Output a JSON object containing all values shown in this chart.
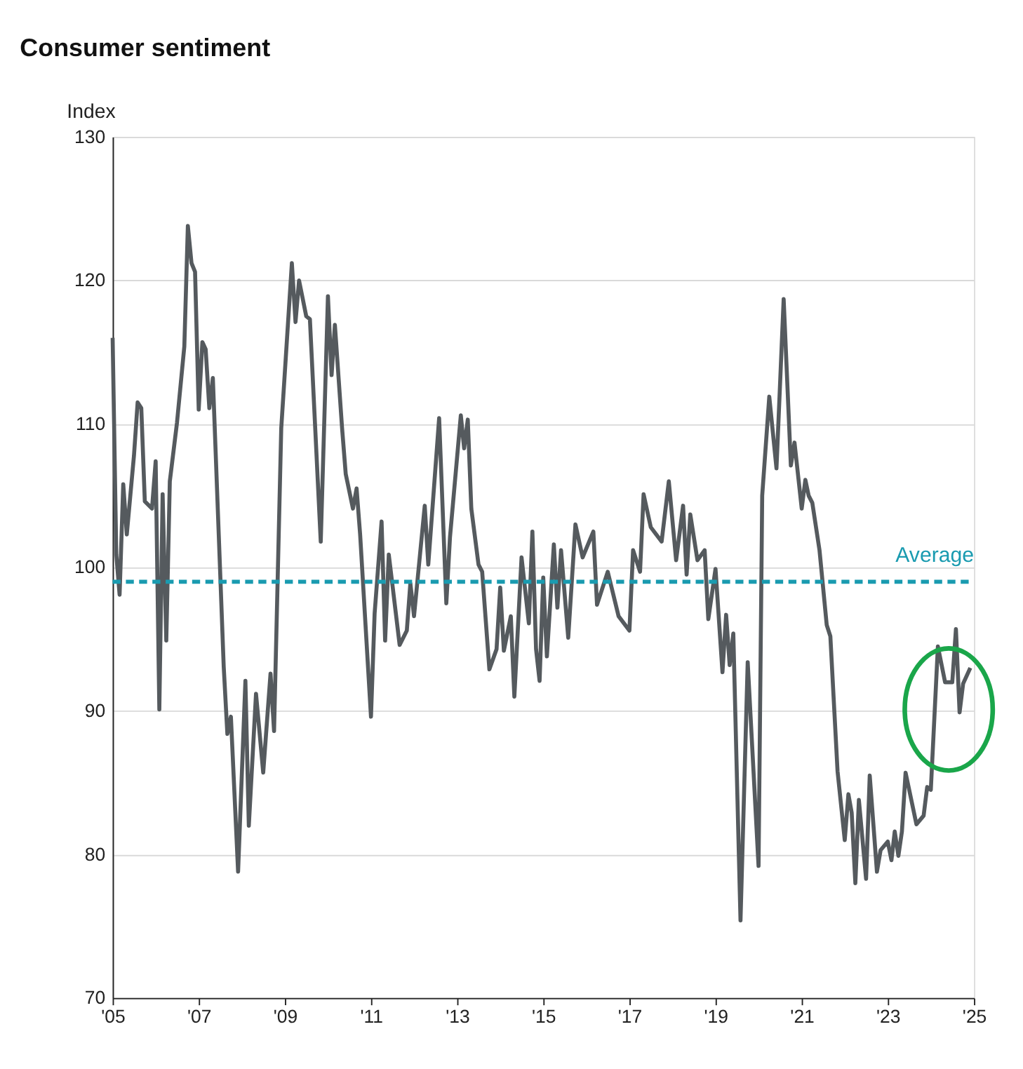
{
  "chart_data": {
    "type": "line",
    "title": "Consumer sentiment",
    "ylabel": "Index",
    "x": [
      "2005-01",
      "2005-02",
      "2005-03",
      "2005-04",
      "2005-05",
      "2005-07",
      "2005-08",
      "2005-09",
      "2005-10",
      "2005-12",
      "2006-01",
      "2006-02",
      "2006-03",
      "2006-04",
      "2006-05",
      "2006-07",
      "2006-09",
      "2006-10",
      "2006-11",
      "2006-12",
      "2007-01",
      "2007-02",
      "2007-03",
      "2007-04",
      "2007-05",
      "2007-08",
      "2007-09",
      "2007-10",
      "2007-12",
      "2008-02",
      "2008-03",
      "2008-05",
      "2008-07",
      "2008-09",
      "2008-10",
      "2008-12",
      "2009-03",
      "2009-04",
      "2009-05",
      "2009-07",
      "2009-08",
      "2009-11",
      "2010-01",
      "2010-02",
      "2010-03",
      "2010-05",
      "2010-06",
      "2010-08",
      "2010-09",
      "2010-10",
      "2011-01",
      "2011-02",
      "2011-04",
      "2011-05",
      "2011-06",
      "2011-09",
      "2011-11",
      "2011-12",
      "2012-01",
      "2012-04",
      "2012-05",
      "2012-08",
      "2012-10",
      "2012-11",
      "2013-02",
      "2013-03",
      "2013-04",
      "2013-05",
      "2013-07",
      "2013-08",
      "2013-10",
      "2013-12",
      "2014-01",
      "2014-02",
      "2014-04",
      "2014-05",
      "2014-07",
      "2014-09",
      "2014-10",
      "2014-11",
      "2014-12",
      "2015-01",
      "2015-02",
      "2015-04",
      "2015-05",
      "2015-06",
      "2015-08",
      "2015-10",
      "2015-12",
      "2016-03",
      "2016-04",
      "2016-07",
      "2016-10",
      "2017-01",
      "2017-02",
      "2017-04",
      "2017-05",
      "2017-07",
      "2017-10",
      "2017-12",
      "2018-02",
      "2018-04",
      "2018-05",
      "2018-06",
      "2018-08",
      "2018-10",
      "2018-11",
      "2019-01",
      "2019-03",
      "2019-04",
      "2019-05",
      "2019-06",
      "2019-08",
      "2019-10",
      "2020-01",
      "2020-02",
      "2020-04",
      "2020-06",
      "2020-08",
      "2020-10",
      "2020-11",
      "2021-01",
      "2021-02",
      "2021-03",
      "2021-04",
      "2021-06",
      "2021-08",
      "2021-09",
      "2021-11",
      "2022-01",
      "2022-02",
      "2022-03",
      "2022-04",
      "2022-05",
      "2022-07",
      "2022-08",
      "2022-10",
      "2022-11",
      "2023-01",
      "2023-02",
      "2023-03",
      "2023-04",
      "2023-05",
      "2023-06",
      "2023-09",
      "2023-11",
      "2023-12",
      "2024-01",
      "2024-03",
      "2024-05",
      "2024-07",
      "2024-08",
      "2024-09",
      "2024-10",
      "2024-12"
    ],
    "series": [
      {
        "color": "#555a5e",
        "values": [
          116.0,
          100.9,
          98.1,
          105.8,
          102.3,
          107.8,
          111.5,
          111.1,
          104.6,
          104.1,
          107.4,
          90.1,
          105.1,
          94.9,
          106.0,
          110.1,
          115.4,
          123.8,
          121.2,
          120.6,
          111.0,
          115.7,
          115.2,
          111.1,
          113.2,
          93.1,
          88.4,
          89.6,
          78.8,
          92.1,
          82.0,
          91.2,
          85.7,
          92.6,
          88.6,
          109.7,
          121.2,
          117.1,
          120.0,
          117.5,
          117.3,
          101.8,
          118.9,
          113.4,
          116.9,
          109.7,
          106.5,
          104.1,
          105.5,
          102.3,
          89.6,
          96.8,
          103.2,
          94.9,
          100.9,
          94.6,
          95.6,
          98.9,
          96.6,
          104.3,
          100.2,
          110.4,
          97.5,
          102.1,
          110.6,
          108.3,
          110.3,
          104.1,
          100.2,
          99.7,
          92.9,
          94.3,
          98.6,
          94.2,
          96.6,
          91.0,
          100.7,
          96.1,
          102.5,
          94.3,
          92.1,
          99.3,
          93.8,
          101.6,
          97.2,
          101.2,
          95.1,
          103.0,
          100.7,
          102.5,
          97.4,
          99.7,
          96.6,
          95.6,
          101.2,
          99.7,
          105.1,
          102.8,
          101.8,
          106.0,
          100.5,
          104.3,
          99.5,
          103.7,
          100.5,
          101.2,
          96.4,
          99.9,
          92.7,
          96.7,
          93.2,
          95.4,
          75.4,
          93.4,
          79.2,
          105.0,
          111.9,
          106.9,
          118.7,
          107.1,
          108.7,
          104.1,
          106.1,
          105.0,
          104.5,
          101.2,
          96.0,
          95.2,
          85.8,
          81.0,
          84.2,
          82.9,
          78.0,
          83.8,
          78.3,
          85.5,
          78.8,
          80.3,
          80.9,
          79.6,
          81.6,
          79.9,
          81.6,
          85.7,
          82.1,
          82.7,
          84.7,
          84.5,
          94.5,
          92.0,
          92.0,
          95.7,
          89.9,
          91.9,
          93.0
        ]
      }
    ],
    "xlim": [
      "2005-01",
      "2025-01"
    ],
    "xticks": [
      {
        "value": "2005-01",
        "label": "'05"
      },
      {
        "value": "2007-01",
        "label": "'07"
      },
      {
        "value": "2009-01",
        "label": "'09"
      },
      {
        "value": "2011-01",
        "label": "'11"
      },
      {
        "value": "2013-01",
        "label": "'13"
      },
      {
        "value": "2015-01",
        "label": "'15"
      },
      {
        "value": "2017-01",
        "label": "'17"
      },
      {
        "value": "2019-01",
        "label": "'19"
      },
      {
        "value": "2021-01",
        "label": "'21"
      },
      {
        "value": "2023-01",
        "label": "'23"
      },
      {
        "value": "2025-01",
        "label": "'25"
      }
    ],
    "ylim": [
      70,
      130
    ],
    "yticks": [
      70,
      80,
      90,
      100,
      110,
      120,
      130
    ],
    "grid": "y",
    "ref_lines": [
      {
        "axis": "y",
        "value": 99,
        "label": "Average",
        "color": "#1a9bb0",
        "line_style": "dashed"
      }
    ]
  }
}
